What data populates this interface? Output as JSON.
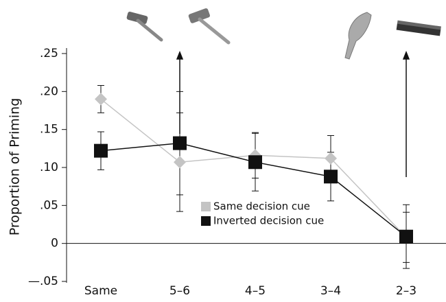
{
  "chart_data": {
    "type": "line",
    "y_label": "Proportion of Priming",
    "categories": [
      "Same",
      "5–6",
      "4–5",
      "3–4",
      "2–3"
    ],
    "series": [
      {
        "name": "Same decision cue",
        "color": "#c4c4c4",
        "marker": "diamond",
        "values": [
          0.19,
          0.107,
          0.116,
          0.112,
          0.008
        ],
        "errors": [
          0.018,
          0.065,
          0.03,
          0.03,
          0.033
        ]
      },
      {
        "name": "Inverted decision cue",
        "color": "#111111",
        "marker": "square",
        "values": [
          0.122,
          0.132,
          0.107,
          0.088,
          0.009
        ],
        "errors": [
          0.025,
          0.068,
          0.038,
          0.032,
          0.042
        ]
      }
    ],
    "ylim": [
      -0.05,
      0.25
    ],
    "yticks": [
      {
        "value": -0.05,
        "label": "—.05"
      },
      0,
      {
        "value": 0.05,
        "label": ".05"
      },
      {
        "value": 0.1,
        "label": ".10"
      },
      {
        "value": 0.15,
        "label": ".15"
      },
      {
        "value": 0.2,
        "label": ".20"
      },
      {
        "value": 0.25,
        "label": ".25"
      }
    ],
    "grid": false
  }
}
